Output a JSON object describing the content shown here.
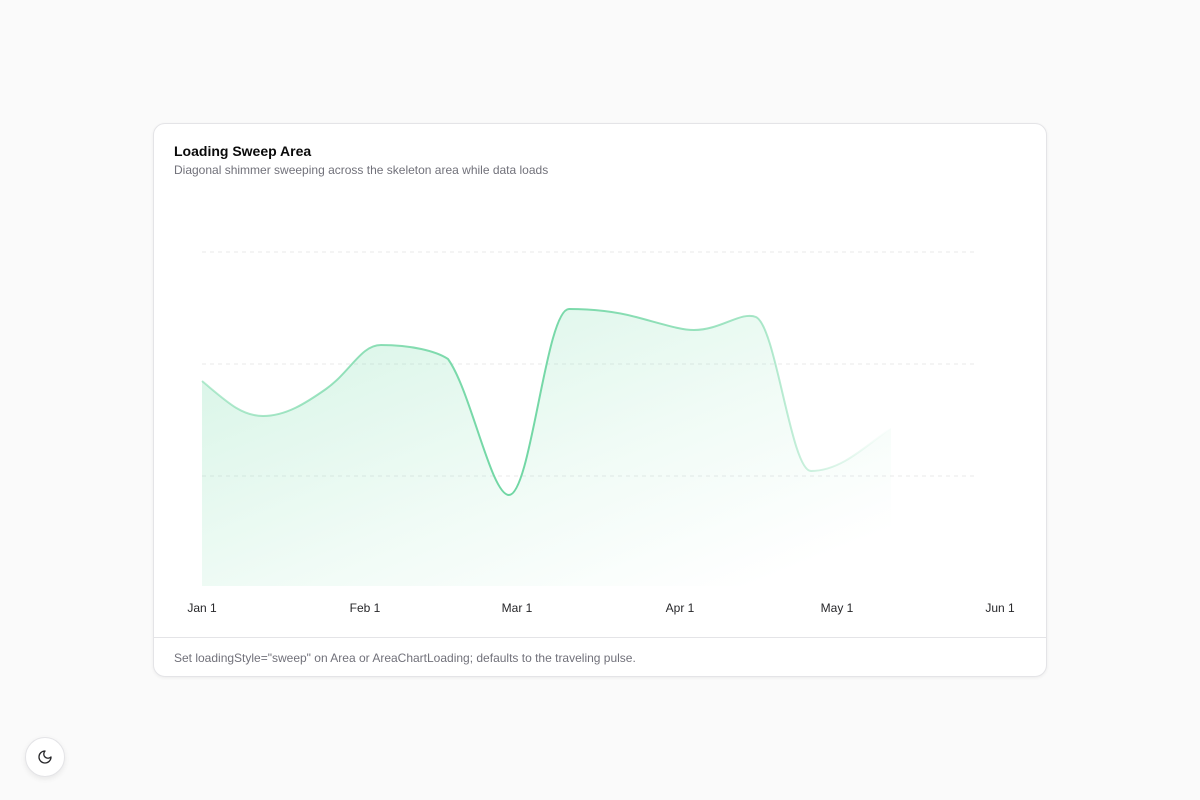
{
  "card": {
    "title": "Loading Sweep Area",
    "subtitle": "Diagonal shimmer sweeping across the skeleton area while data loads",
    "x_labels": [
      "Jan 1",
      "Feb 1",
      "Mar 1",
      "Apr 1",
      "May 1",
      "Jun 1"
    ],
    "footer": "Set loadingStyle=\"sweep\" on Area or AreaChartLoading; defaults to the traveling pulse."
  }
}
